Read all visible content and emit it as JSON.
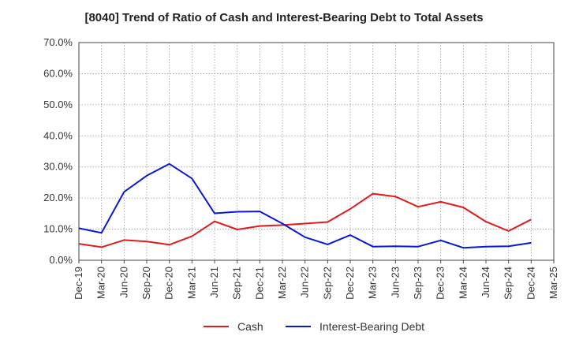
{
  "chart_data": {
    "type": "line",
    "title": "[8040]  Trend of Ratio of Cash and Interest-Bearing Debt to Total Assets",
    "xlabel": "",
    "ylabel": "",
    "x": [
      "Dec-19",
      "Mar-20",
      "Jun-20",
      "Sep-20",
      "Dec-20",
      "Mar-21",
      "Jun-21",
      "Sep-21",
      "Dec-21",
      "Mar-22",
      "Jun-22",
      "Sep-22",
      "Dec-22",
      "Mar-23",
      "Jun-23",
      "Sep-23",
      "Dec-23",
      "Mar-24",
      "Jun-24",
      "Sep-24",
      "Dec-24",
      "Mar-25"
    ],
    "ylim": [
      0,
      70
    ],
    "yticks": [
      "0.0%",
      "10.0%",
      "20.0%",
      "30.0%",
      "40.0%",
      "50.0%",
      "60.0%",
      "70.0%"
    ],
    "grid": true,
    "legend_position": "bottom",
    "series": [
      {
        "name": "Cash",
        "color": "#e31a1c",
        "values": [
          5.3,
          4.2,
          6.5,
          6.0,
          5.0,
          7.7,
          12.5,
          9.9,
          11.0,
          11.3,
          11.8,
          12.3,
          16.5,
          21.4,
          20.5,
          17.2,
          18.8,
          17.0,
          12.4,
          9.4,
          13.1,
          null
        ]
      },
      {
        "name": "Interest-Bearing Debt",
        "color": "#0a17d6",
        "values": [
          10.3,
          8.8,
          22.0,
          27.2,
          31.0,
          26.3,
          15.1,
          15.6,
          15.7,
          11.8,
          7.4,
          5.1,
          8.1,
          4.4,
          4.5,
          4.4,
          6.4,
          4.0,
          4.4,
          4.5,
          5.6,
          null
        ]
      }
    ]
  }
}
